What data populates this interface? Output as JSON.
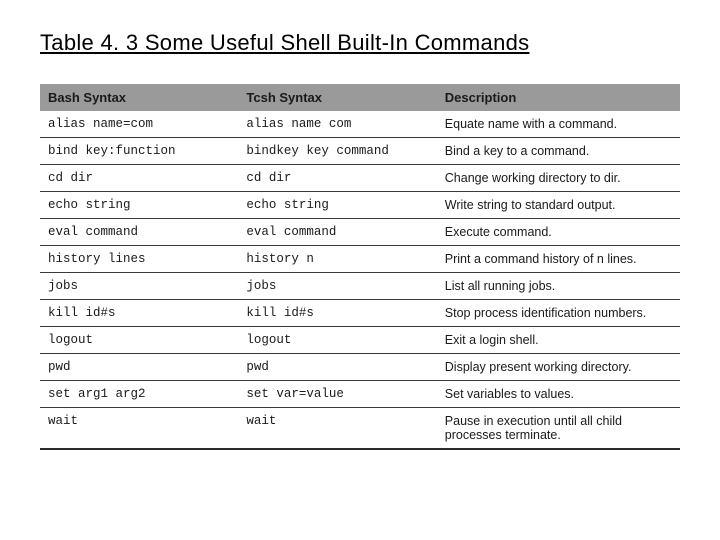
{
  "title": "Table 4. 3  Some Useful Shell Built-In Commands",
  "columns": [
    "Bash Syntax",
    "Tcsh Syntax",
    "Description"
  ],
  "rows": [
    {
      "bash": "alias name=com",
      "tcsh": "alias name com",
      "desc": "Equate name with a command."
    },
    {
      "bash": "bind key:function",
      "tcsh": "bindkey key command",
      "desc": "Bind a key to a command."
    },
    {
      "bash": "cd dir",
      "tcsh": "cd dir",
      "desc": "Change working directory to dir."
    },
    {
      "bash": "echo string",
      "tcsh": "echo string",
      "desc": "Write string to standard output."
    },
    {
      "bash": "eval command",
      "tcsh": "eval command",
      "desc": "Execute command."
    },
    {
      "bash": "history lines",
      "tcsh": "history n",
      "desc": "Print a command history of n lines."
    },
    {
      "bash": "jobs",
      "tcsh": "jobs",
      "desc": "List all running jobs."
    },
    {
      "bash": "kill id#s",
      "tcsh": "kill id#s",
      "desc": "Stop process identification numbers."
    },
    {
      "bash": "logout",
      "tcsh": "logout",
      "desc": "Exit a login shell."
    },
    {
      "bash": "pwd",
      "tcsh": "pwd",
      "desc": "Display present working directory."
    },
    {
      "bash": "set arg1 arg2",
      "tcsh": "set var=value",
      "desc": "Set variables to values."
    },
    {
      "bash": "wait",
      "tcsh": "wait",
      "desc": "Pause in execution until all child processes terminate."
    }
  ],
  "style": {
    "header_bg": "#9a9a9a",
    "row_border": "#3a3a3a",
    "text_color": "#1a1a1a",
    "mono_font": "Courier New",
    "body_font": "Arial",
    "title_fontsize": 22,
    "cell_fontsize": 12.5
  }
}
